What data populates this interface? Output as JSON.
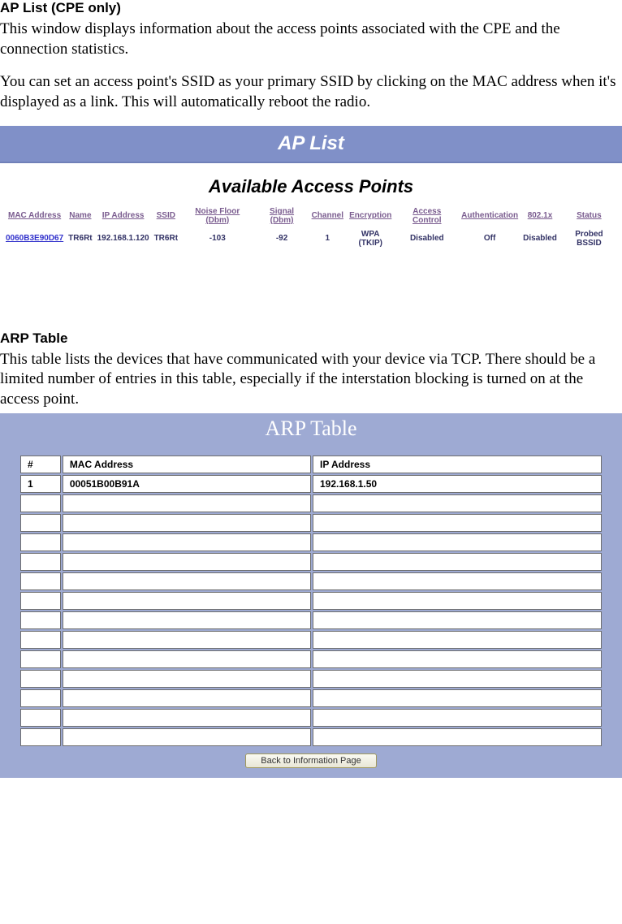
{
  "section1": {
    "heading": "AP List (CPE only)",
    "para1": "This window displays information about the access points associated with the CPE and the connection statistics.",
    "para2": "You can set an access point's SSID as your primary SSID by clicking on the MAC address when it's displayed as a link. This will automatically reboot the radio."
  },
  "ap_panel": {
    "title": "AP List",
    "subtitle": "Available Access Points",
    "columns": [
      "MAC Address",
      "Name",
      "IP Address",
      "SSID",
      "Noise Floor (Dbm)",
      "Signal (Dbm)",
      "Channel",
      "Encryption",
      "Access Control",
      "Authentication",
      "802.1x",
      "Status"
    ],
    "rows": [
      {
        "mac": "0060B3E90D67",
        "name": "TR6Rt",
        "ip": "192.168.1.120",
        "ssid": "TR6Rt",
        "noise": "-103",
        "signal": "-92",
        "channel": "1",
        "encryption": "WPA (TKIP)",
        "accessControl": "Disabled",
        "authentication": "Off",
        "dot1x": "Disabled",
        "status": "Probed BSSID"
      }
    ]
  },
  "section2": {
    "heading": "ARP Table",
    "para1": "This table lists the devices that have communicated with your device via TCP. There should be a limited number of entries in this table, especially if the interstation blocking is turned on at the access point."
  },
  "arp_panel": {
    "title": "ARP Table",
    "columns": [
      "#",
      "MAC Address",
      "IP Address"
    ],
    "rows": [
      {
        "num": "1",
        "mac": "00051B00B91A",
        "ip": "192.168.1.50"
      },
      {
        "num": "",
        "mac": "",
        "ip": ""
      },
      {
        "num": "",
        "mac": "",
        "ip": ""
      },
      {
        "num": "",
        "mac": "",
        "ip": ""
      },
      {
        "num": "",
        "mac": "",
        "ip": ""
      },
      {
        "num": "",
        "mac": "",
        "ip": ""
      },
      {
        "num": "",
        "mac": "",
        "ip": ""
      },
      {
        "num": "",
        "mac": "",
        "ip": ""
      },
      {
        "num": "",
        "mac": "",
        "ip": ""
      },
      {
        "num": "",
        "mac": "",
        "ip": ""
      },
      {
        "num": "",
        "mac": "",
        "ip": ""
      },
      {
        "num": "",
        "mac": "",
        "ip": ""
      },
      {
        "num": "",
        "mac": "",
        "ip": ""
      },
      {
        "num": "",
        "mac": "",
        "ip": ""
      }
    ],
    "back_button": "Back to Information Page"
  },
  "colors": {
    "panel_bg": "#8090c8",
    "arp_panel_bg": "#9eaad3",
    "header_text": "#ffffff",
    "th_color": "#7a5c8f",
    "link_color": "#3333cc",
    "td_color": "#333366"
  }
}
